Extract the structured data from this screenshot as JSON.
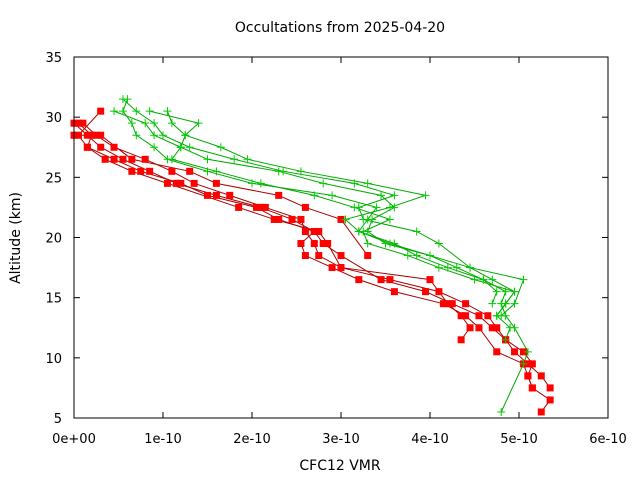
{
  "chart_data": {
    "type": "line",
    "title": "Occultations from 2025-04-20",
    "xlabel": "CFC12 VMR",
    "ylabel": "Altitude (km)",
    "xlim": [
      0,
      6e-10
    ],
    "ylim": [
      5,
      35
    ],
    "x_ticks": [
      0,
      1e-10,
      2e-10,
      3e-10,
      4e-10,
      5e-10,
      6e-10
    ],
    "x_tick_labels": [
      "0e+00",
      "1e-10",
      "2e-10",
      "3e-10",
      "4e-10",
      "5e-10",
      "6e-10"
    ],
    "y_ticks": [
      5,
      10,
      15,
      20,
      25,
      30,
      35
    ],
    "y_tick_labels": [
      "5",
      "10",
      "15",
      "20",
      "25",
      "30",
      "35"
    ],
    "grid": false,
    "legend": "none",
    "colors": {
      "red": "#ff0000",
      "green": "#00cc00",
      "dark_red": "#aa0000",
      "dark_green": "#00aa00"
    },
    "series": [
      {
        "color": "red",
        "marker": "square",
        "points": [
          [
            5.25e-10,
            5.5
          ],
          [
            5.35e-10,
            6.5
          ],
          [
            5.15e-10,
            7.5
          ],
          [
            5.1e-10,
            8.5
          ],
          [
            5.15e-10,
            9.5
          ],
          [
            5.05e-10,
            10.5
          ],
          [
            4.85e-10,
            11.5
          ],
          [
            4.75e-10,
            12.5
          ],
          [
            4.65e-10,
            13.5
          ],
          [
            4.4e-10,
            14.5
          ],
          [
            4.1e-10,
            15.5
          ],
          [
            3.55e-10,
            16.5
          ],
          [
            3e-10,
            17.5
          ],
          [
            2.75e-10,
            18.5
          ],
          [
            2.7e-10,
            19.5
          ],
          [
            2.6e-10,
            20.5
          ],
          [
            2.55e-10,
            21.5
          ],
          [
            2.15e-10,
            22.5
          ],
          [
            1.75e-10,
            23.5
          ],
          [
            1.35e-10,
            24.5
          ],
          [
            1.1e-10,
            25.5
          ],
          [
            8e-11,
            26.5
          ],
          [
            4.5e-11,
            27.5
          ],
          [
            2.5e-11,
            28.5
          ],
          [
            1e-11,
            29.5
          ]
        ]
      },
      {
        "color": "red",
        "marker": "square",
        "points": [
          [
            5.35e-10,
            7.5
          ],
          [
            5.25e-10,
            8.5
          ],
          [
            5.1e-10,
            9.5
          ],
          [
            4.95e-10,
            10.5
          ],
          [
            4.85e-10,
            11.5
          ],
          [
            4.7e-10,
            12.5
          ],
          [
            4.55e-10,
            13.5
          ],
          [
            4.25e-10,
            14.5
          ],
          [
            3.95e-10,
            15.5
          ],
          [
            3.45e-10,
            16.5
          ],
          [
            3e-10,
            18.5
          ],
          [
            2.8e-10,
            19.5
          ],
          [
            2.7e-10,
            20.5
          ],
          [
            2.45e-10,
            21.5
          ],
          [
            2.1e-10,
            22.5
          ],
          [
            1.6e-10,
            23.5
          ],
          [
            1.15e-10,
            24.5
          ],
          [
            8.5e-11,
            25.5
          ],
          [
            5.5e-11,
            26.5
          ],
          [
            3e-11,
            27.5
          ],
          [
            1.5e-11,
            28.5
          ],
          [
            0.0,
            29.5
          ]
        ]
      },
      {
        "color": "red",
        "marker": "square",
        "points": [
          [
            5.15e-10,
            7.5
          ],
          [
            5.1e-10,
            8.5
          ],
          [
            5.05e-10,
            9.5
          ],
          [
            4.75e-10,
            10.5
          ],
          [
            4.55e-10,
            12.5
          ],
          [
            4.4e-10,
            13.5
          ],
          [
            4.15e-10,
            14.5
          ],
          [
            3.6e-10,
            15.5
          ],
          [
            3.2e-10,
            16.5
          ],
          [
            2.9e-10,
            17.5
          ],
          [
            2.6e-10,
            18.5
          ],
          [
            2.55e-10,
            19.5
          ],
          [
            2.7e-10,
            20.5
          ],
          [
            2.3e-10,
            21.5
          ],
          [
            2.05e-10,
            22.5
          ],
          [
            1.5e-10,
            23.5
          ],
          [
            1.2e-10,
            24.5
          ],
          [
            7.5e-11,
            25.5
          ],
          [
            4.5e-11,
            26.5
          ],
          [
            1.5e-11,
            27.5
          ],
          [
            2e-11,
            28.5
          ],
          [
            5e-12,
            29.5
          ]
        ]
      },
      {
        "color": "red",
        "marker": "square",
        "points": [
          [
            4.35e-10,
            11.5
          ],
          [
            4.45e-10,
            12.5
          ],
          [
            4.35e-10,
            13.5
          ],
          [
            4.2e-10,
            14.5
          ],
          [
            4e-10,
            16.5
          ],
          [
            3e-10,
            17.5
          ],
          [
            2.85e-10,
            19.5
          ],
          [
            2.75e-10,
            20.5
          ],
          [
            2.25e-10,
            21.5
          ],
          [
            1.85e-10,
            22.5
          ],
          [
            1.05e-10,
            24.5
          ],
          [
            6.5e-11,
            25.5
          ],
          [
            3.5e-11,
            26.5
          ],
          [
            1.5e-11,
            27.5
          ],
          [
            5e-12,
            28.5
          ],
          [
            3e-11,
            30.5
          ]
        ]
      },
      {
        "color": "red",
        "marker": "square",
        "points": [
          [
            3.3e-10,
            18.5
          ],
          [
            3e-10,
            21.5
          ],
          [
            2.6e-10,
            22.5
          ],
          [
            2.3e-10,
            23.5
          ],
          [
            1.6e-10,
            24.5
          ],
          [
            1.3e-10,
            25.5
          ],
          [
            6.5e-11,
            26.5
          ],
          [
            3e-11,
            28.5
          ],
          [
            0.0,
            28.5
          ]
        ]
      },
      {
        "color": "green",
        "marker": "plus",
        "points": [
          [
            4.8e-10,
            5.5
          ],
          [
            5.05e-10,
            9.5
          ],
          [
            5.1e-10,
            10.5
          ],
          [
            4.95e-10,
            12.5
          ],
          [
            4.85e-10,
            13.5
          ],
          [
            4.8e-10,
            14.5
          ],
          [
            4.85e-10,
            15.5
          ],
          [
            4.6e-10,
            16.5
          ],
          [
            4.2e-10,
            17.5
          ],
          [
            3.85e-10,
            18.5
          ],
          [
            3.6e-10,
            19.5
          ],
          [
            3.2e-10,
            20.5
          ],
          [
            3.3e-10,
            21.5
          ],
          [
            3.4e-10,
            22.5
          ],
          [
            2.9e-10,
            23.5
          ],
          [
            2e-10,
            24.5
          ],
          [
            1.5e-10,
            25.5
          ],
          [
            1.05e-10,
            26.5
          ],
          [
            9e-11,
            27.5
          ],
          [
            7e-11,
            28.5
          ],
          [
            6.5e-11,
            29.5
          ],
          [
            5.5e-11,
            30.5
          ],
          [
            6e-11,
            31.5
          ]
        ]
      },
      {
        "color": "green",
        "marker": "plus",
        "points": [
          [
            4.85e-10,
            11.5
          ],
          [
            4.9e-10,
            12.5
          ],
          [
            4.75e-10,
            13.5
          ],
          [
            4.85e-10,
            14.5
          ],
          [
            4.95e-10,
            15.5
          ],
          [
            4.7e-10,
            16.5
          ],
          [
            4.45e-10,
            17.5
          ],
          [
            4e-10,
            18.5
          ],
          [
            3.5e-10,
            19.5
          ],
          [
            3.3e-10,
            20.5
          ],
          [
            3.35e-10,
            21.5
          ],
          [
            3.6e-10,
            22.5
          ],
          [
            3.45e-10,
            23.5
          ],
          [
            2.8e-10,
            24.5
          ],
          [
            2.3e-10,
            25.5
          ],
          [
            1.5e-10,
            26.5
          ],
          [
            1.2e-10,
            27.5
          ],
          [
            9e-11,
            28.5
          ],
          [
            8e-11,
            29.5
          ],
          [
            4.5e-11,
            30.5
          ]
        ]
      },
      {
        "color": "green",
        "marker": "plus",
        "points": [
          [
            4.8e-10,
            13.5
          ],
          [
            4.95e-10,
            14.5
          ],
          [
            5.05e-10,
            16.5
          ],
          [
            4.45e-10,
            17.5
          ],
          [
            4.1e-10,
            19.5
          ],
          [
            3.85e-10,
            20.5
          ],
          [
            3.25e-10,
            21.5
          ],
          [
            3.2e-10,
            22.5
          ],
          [
            3.6e-10,
            23.5
          ],
          [
            3.15e-10,
            24.5
          ],
          [
            2.35e-10,
            25.5
          ],
          [
            1.8e-10,
            26.5
          ],
          [
            1.3e-10,
            27.5
          ],
          [
            1e-10,
            28.5
          ],
          [
            9e-11,
            29.5
          ],
          [
            7e-11,
            30.5
          ],
          [
            5.5e-11,
            31.5
          ]
        ]
      },
      {
        "color": "green",
        "marker": "plus",
        "points": [
          [
            4.7e-10,
            14.5
          ],
          [
            4.75e-10,
            15.5
          ],
          [
            4.6e-10,
            16.5
          ],
          [
            4.3e-10,
            17.5
          ],
          [
            4e-10,
            18.5
          ],
          [
            3.55e-10,
            19.5
          ],
          [
            3.2e-10,
            20.5
          ],
          [
            3.05e-10,
            21.5
          ],
          [
            3.55e-10,
            22.5
          ],
          [
            3.95e-10,
            23.5
          ],
          [
            3.3e-10,
            24.5
          ],
          [
            2.55e-10,
            25.5
          ],
          [
            1.95e-10,
            26.5
          ],
          [
            1.65e-10,
            27.5
          ],
          [
            1.25e-10,
            28.5
          ],
          [
            1.1e-10,
            29.5
          ],
          [
            1.05e-10,
            30.5
          ]
        ]
      },
      {
        "color": "green",
        "marker": "plus",
        "points": [
          [
            4.75e-10,
            13.5
          ],
          [
            4.85e-10,
            14.5
          ],
          [
            4.95e-10,
            15.5
          ],
          [
            4.5e-10,
            16.5
          ],
          [
            4.1e-10,
            17.5
          ],
          [
            3.75e-10,
            18.5
          ],
          [
            3.3e-10,
            19.5
          ],
          [
            3.25e-10,
            20.5
          ],
          [
            3.55e-10,
            21.5
          ],
          [
            3.15e-10,
            22.5
          ],
          [
            2.7e-10,
            23.5
          ],
          [
            2.1e-10,
            24.5
          ],
          [
            1.6e-10,
            25.5
          ],
          [
            1.1e-10,
            26.5
          ],
          [
            1.2e-10,
            27.5
          ],
          [
            1.25e-10,
            28.5
          ],
          [
            1.4e-10,
            29.5
          ],
          [
            8.5e-11,
            30.5
          ]
        ]
      }
    ]
  }
}
